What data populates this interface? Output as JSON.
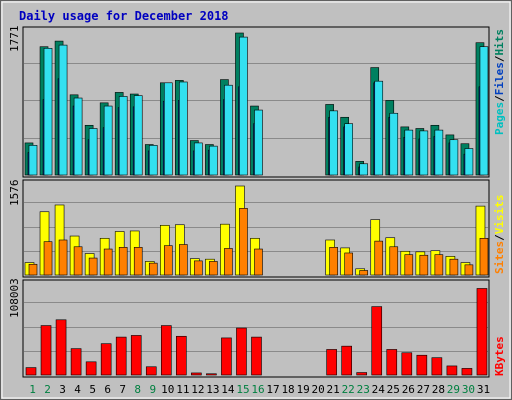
{
  "title": "Daily usage for December 2018",
  "colors": {
    "outer_bg": "#c0c0c0",
    "panel_bg": "#c0c0c0",
    "grid": "#8a8a8a",
    "title": "#0000c0",
    "hits": "#00c0c0",
    "hits_light": "#33e0f0",
    "files": "#0040c0",
    "pages": "#008060",
    "visits": "#ffff00",
    "sites": "#ff8000",
    "kbytes": "#ff0000",
    "weekday_label": "#000000",
    "weekend_label": "#008040"
  },
  "legend": {
    "top": {
      "hits": "Hits",
      "files": "Files",
      "pages": "Pages",
      "sep": "/"
    },
    "middle": {
      "visits": "Visits",
      "sites": "Sites",
      "sep": "/"
    },
    "bottom": {
      "kbytes": "KBytes"
    }
  },
  "chart_data": [
    {
      "type": "bar",
      "panel": "top",
      "ymax_label": "1771",
      "ylim": [
        0,
        1771
      ],
      "series": [
        {
          "name": "Pages",
          "values": [
            400,
            1600,
            1670,
            1000,
            620,
            900,
            1030,
            1010,
            380,
            1150,
            1180,
            430,
            380,
            1190,
            1771,
            860,
            0,
            0,
            0,
            0,
            880,
            720,
            170,
            1340,
            930,
            600,
            580,
            620,
            500,
            390,
            1650
          ]
        },
        {
          "name": "Files",
          "values": [
            280,
            940,
            1200,
            860,
            440,
            590,
            840,
            850,
            300,
            920,
            930,
            300,
            310,
            940,
            1100,
            640,
            0,
            0,
            0,
            0,
            720,
            600,
            100,
            1150,
            720,
            470,
            450,
            480,
            400,
            260,
            1100
          ]
        },
        {
          "name": "Hits",
          "values": [
            370,
            1580,
            1620,
            960,
            580,
            860,
            980,
            990,
            370,
            1150,
            1160,
            400,
            360,
            1120,
            1720,
            810,
            0,
            0,
            0,
            0,
            800,
            640,
            140,
            1170,
            770,
            560,
            550,
            560,
            440,
            330,
            1600
          ]
        }
      ]
    },
    {
      "type": "bar",
      "panel": "middle",
      "ymax_label": "1576",
      "ylim": [
        0,
        1576
      ],
      "series": [
        {
          "name": "Visits",
          "values": [
            220,
            1120,
            1240,
            690,
            380,
            650,
            770,
            780,
            240,
            880,
            890,
            290,
            280,
            900,
            1576,
            650,
            0,
            0,
            0,
            0,
            620,
            480,
            110,
            980,
            660,
            420,
            410,
            430,
            330,
            220,
            1220
          ]
        },
        {
          "name": "Sites",
          "values": [
            190,
            590,
            620,
            500,
            300,
            460,
            490,
            490,
            210,
            520,
            540,
            250,
            240,
            470,
            1180,
            460,
            0,
            0,
            0,
            0,
            490,
            390,
            80,
            600,
            500,
            360,
            350,
            360,
            280,
            180,
            650
          ]
        }
      ]
    },
    {
      "type": "bar",
      "panel": "bottom",
      "ymax_label": "108003",
      "ylim": [
        0,
        108003
      ],
      "series": [
        {
          "name": "KBytes",
          "values": [
            9000,
            60000,
            67000,
            32000,
            16000,
            38000,
            46000,
            48000,
            10000,
            60000,
            47000,
            2500,
            1500,
            45000,
            57000,
            46000,
            0,
            0,
            0,
            0,
            31000,
            35000,
            3000,
            83000,
            31000,
            27000,
            24000,
            21000,
            11000,
            8000,
            105000
          ]
        }
      ]
    }
  ],
  "days": [
    "1",
    "2",
    "3",
    "4",
    "5",
    "6",
    "7",
    "8",
    "9",
    "10",
    "11",
    "12",
    "13",
    "14",
    "15",
    "16",
    "17",
    "18",
    "19",
    "20",
    "21",
    "22",
    "23",
    "24",
    "25",
    "26",
    "27",
    "28",
    "29",
    "30",
    "31"
  ],
  "weekend_days": [
    1,
    2,
    8,
    9,
    15,
    16,
    22,
    23,
    29,
    30
  ]
}
